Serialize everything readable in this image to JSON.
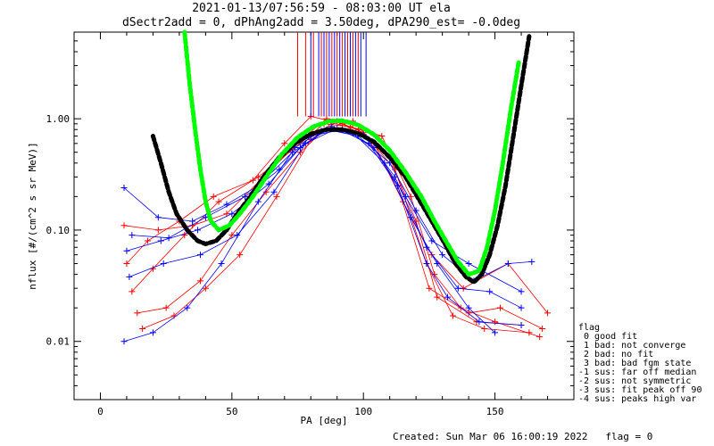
{
  "chart_data": {
    "type": "scatter",
    "title": "2021-01-13/07:56:59 - 08:03:00 UT ela",
    "subtitle": "dSectr2add = 0, dPhAng2add = 3.50deg, dPA290_est=  -0.0deg",
    "xlabel": "PA [deg]",
    "ylabel": "nflux [#/(cm^2 s sr MeV)]",
    "xlim": [
      -10,
      180
    ],
    "ylim": [
      0.003,
      6
    ],
    "yscale": "log",
    "xticks": [
      0,
      50,
      100,
      150
    ],
    "xtick_labels": [
      "0",
      "50",
      "100",
      "150"
    ],
    "yticks": [
      0.01,
      0.1,
      1.0
    ],
    "ytick_labels": [
      "0.01",
      "0.10",
      "1.00"
    ],
    "grid": false,
    "colors": {
      "red": "#ff0000",
      "blue": "#0000ff",
      "black": "#000000",
      "green": "#00ff00"
    },
    "series": [
      {
        "color": "#ff0000",
        "style": "lines+plus",
        "traces": [
          [
            [
              12,
              0.028
            ],
            [
              20,
              0.045
            ],
            [
              32,
              0.09
            ],
            [
              45,
              0.18
            ],
            [
              60,
              0.3
            ],
            [
              74,
              0.55
            ],
            [
              85,
              0.9
            ],
            [
              95,
              0.85
            ],
            [
              107,
              0.7
            ],
            [
              118,
              0.2
            ],
            [
              127,
              0.04
            ],
            [
              137,
              0.02
            ],
            [
              150,
              0.015
            ],
            [
              167,
              0.011
            ]
          ],
          [
            [
              10,
              0.05
            ],
            [
              18,
              0.08
            ],
            [
              30,
              0.12
            ],
            [
              43,
              0.2
            ],
            [
              58,
              0.28
            ],
            [
              70,
              0.6
            ],
            [
              80,
              1.05
            ],
            [
              92,
              0.9
            ],
            [
              102,
              0.65
            ],
            [
              113,
              0.25
            ],
            [
              125,
              0.03
            ],
            [
              140,
              0.018
            ],
            [
              152,
              0.02
            ],
            [
              168,
              0.013
            ]
          ],
          [
            [
              14,
              0.018
            ],
            [
              25,
              0.02
            ],
            [
              38,
              0.035
            ],
            [
              50,
              0.09
            ],
            [
              63,
              0.22
            ],
            [
              76,
              0.5
            ],
            [
              88,
              0.92
            ],
            [
              98,
              0.8
            ],
            [
              110,
              0.45
            ],
            [
              120,
              0.12
            ],
            [
              128,
              0.025
            ],
            [
              143,
              0.015
            ],
            [
              160,
              0.014
            ]
          ],
          [
            [
              9,
              0.11
            ],
            [
              22,
              0.1
            ],
            [
              35,
              0.11
            ],
            [
              48,
              0.14
            ],
            [
              62,
              0.3
            ],
            [
              78,
              0.7
            ],
            [
              86,
              1.0
            ],
            [
              96,
              0.95
            ],
            [
              104,
              0.6
            ],
            [
              115,
              0.18
            ],
            [
              126,
              0.06
            ],
            [
              138,
              0.03
            ],
            [
              155,
              0.05
            ],
            [
              170,
              0.018
            ]
          ],
          [
            [
              16,
              0.013
            ],
            [
              28,
              0.017
            ],
            [
              40,
              0.03
            ],
            [
              53,
              0.06
            ],
            [
              67,
              0.2
            ],
            [
              80,
              0.65
            ],
            [
              90,
              0.95
            ],
            [
              100,
              0.75
            ],
            [
              112,
              0.35
            ],
            [
              124,
              0.05
            ],
            [
              134,
              0.017
            ],
            [
              146,
              0.013
            ],
            [
              163,
              0.012
            ]
          ]
        ]
      },
      {
        "color": "#0000ff",
        "style": "lines+plus",
        "traces": [
          [
            [
              9,
              0.24
            ],
            [
              22,
              0.13
            ],
            [
              35,
              0.12
            ],
            [
              48,
              0.17
            ],
            [
              60,
              0.25
            ],
            [
              73,
              0.5
            ],
            [
              86,
              0.8
            ],
            [
              98,
              0.7
            ],
            [
              110,
              0.4
            ],
            [
              120,
              0.15
            ],
            [
              130,
              0.06
            ],
            [
              142,
              0.035
            ],
            [
              155,
              0.05
            ],
            [
              164,
              0.052
            ]
          ],
          [
            [
              10,
              0.065
            ],
            [
              23,
              0.08
            ],
            [
              37,
              0.1
            ],
            [
              50,
              0.14
            ],
            [
              64,
              0.26
            ],
            [
              76,
              0.55
            ],
            [
              88,
              0.85
            ],
            [
              100,
              0.72
            ],
            [
              112,
              0.3
            ],
            [
              124,
              0.07
            ],
            [
              136,
              0.03
            ],
            [
              148,
              0.028
            ],
            [
              160,
              0.02
            ]
          ],
          [
            [
              11,
              0.038
            ],
            [
              24,
              0.05
            ],
            [
              38,
              0.06
            ],
            [
              52,
              0.09
            ],
            [
              66,
              0.22
            ],
            [
              78,
              0.6
            ],
            [
              90,
              0.82
            ],
            [
              102,
              0.6
            ],
            [
              113,
              0.25
            ],
            [
              124,
              0.05
            ],
            [
              132,
              0.025
            ],
            [
              144,
              0.015
            ],
            [
              160,
              0.014
            ]
          ],
          [
            [
              9,
              0.01
            ],
            [
              20,
              0.012
            ],
            [
              33,
              0.02
            ],
            [
              46,
              0.05
            ],
            [
              60,
              0.18
            ],
            [
              74,
              0.55
            ],
            [
              84,
              0.78
            ],
            [
              96,
              0.75
            ],
            [
              108,
              0.4
            ],
            [
              118,
              0.13
            ],
            [
              128,
              0.05
            ],
            [
              140,
              0.02
            ],
            [
              150,
              0.012
            ]
          ],
          [
            [
              12,
              0.09
            ],
            [
              26,
              0.085
            ],
            [
              40,
              0.13
            ],
            [
              55,
              0.2
            ],
            [
              68,
              0.35
            ],
            [
              80,
              0.7
            ],
            [
              92,
              0.8
            ],
            [
              104,
              0.55
            ],
            [
              116,
              0.2
            ],
            [
              126,
              0.08
            ],
            [
              140,
              0.05
            ],
            [
              160,
              0.028
            ]
          ]
        ]
      },
      {
        "color": "#000000",
        "style": "thick-dashed",
        "points": [
          [
            20,
            0.7
          ],
          [
            23,
            0.4
          ],
          [
            26,
            0.22
          ],
          [
            29,
            0.14
          ],
          [
            33,
            0.1
          ],
          [
            37,
            0.08
          ],
          [
            40,
            0.075
          ],
          [
            44,
            0.08
          ],
          [
            48,
            0.1
          ],
          [
            52,
            0.14
          ],
          [
            57,
            0.2
          ],
          [
            62,
            0.3
          ],
          [
            68,
            0.45
          ],
          [
            74,
            0.6
          ],
          [
            80,
            0.73
          ],
          [
            86,
            0.8
          ],
          [
            92,
            0.8
          ],
          [
            98,
            0.74
          ],
          [
            104,
            0.62
          ],
          [
            110,
            0.45
          ],
          [
            116,
            0.3
          ],
          [
            121,
            0.19
          ],
          [
            126,
            0.12
          ],
          [
            131,
            0.075
          ],
          [
            135,
            0.05
          ],
          [
            139,
            0.038
          ],
          [
            142,
            0.034
          ],
          [
            145,
            0.04
          ],
          [
            148,
            0.06
          ],
          [
            151,
            0.11
          ],
          [
            154,
            0.25
          ],
          [
            157,
            0.7
          ],
          [
            160,
            2.0
          ],
          [
            163,
            5.5
          ]
        ]
      },
      {
        "color": "#00ff00",
        "style": "thick-dashed",
        "points": [
          [
            32,
            6
          ],
          [
            34,
            2.0
          ],
          [
            36,
            0.8
          ],
          [
            38,
            0.35
          ],
          [
            40,
            0.18
          ],
          [
            42,
            0.12
          ],
          [
            45,
            0.1
          ],
          [
            49,
            0.11
          ],
          [
            53,
            0.14
          ],
          [
            58,
            0.2
          ],
          [
            63,
            0.3
          ],
          [
            69,
            0.48
          ],
          [
            75,
            0.68
          ],
          [
            81,
            0.85
          ],
          [
            87,
            0.95
          ],
          [
            92,
            0.96
          ],
          [
            98,
            0.88
          ],
          [
            104,
            0.72
          ],
          [
            110,
            0.52
          ],
          [
            116,
            0.33
          ],
          [
            122,
            0.2
          ],
          [
            127,
            0.12
          ],
          [
            132,
            0.075
          ],
          [
            136,
            0.052
          ],
          [
            140,
            0.04
          ],
          [
            144,
            0.043
          ],
          [
            147,
            0.07
          ],
          [
            150,
            0.15
          ],
          [
            153,
            0.4
          ],
          [
            156,
            1.2
          ],
          [
            159,
            3.2
          ]
        ]
      },
      {
        "color": "#ff0000",
        "style": "vertical-lines",
        "x": [
          75,
          78,
          81,
          84,
          86,
          88,
          90,
          92,
          94,
          96,
          98
        ],
        "y0": 1.05,
        "y1": 6
      },
      {
        "color": "#0000ff",
        "style": "vertical-lines",
        "x": [
          80,
          83,
          85,
          87,
          89,
          91,
          93,
          95,
          97,
          99,
          101
        ],
        "y0": 1.05,
        "y1": 6
      }
    ],
    "legend": {
      "placement": "right",
      "title": "flag",
      "entries": [
        " 0 good fit",
        " 1 bad: not converge",
        " 2 bad: no fit",
        " 3 bad: bad fgm state",
        "-1 sus: far off median",
        "-2 sus: not symmetric",
        "-3 sus: fit peak off 90",
        "-4 sus: peaks high var"
      ]
    },
    "footer": "Created: Sun Mar 06 16:00:19 2022   flag = 0"
  }
}
